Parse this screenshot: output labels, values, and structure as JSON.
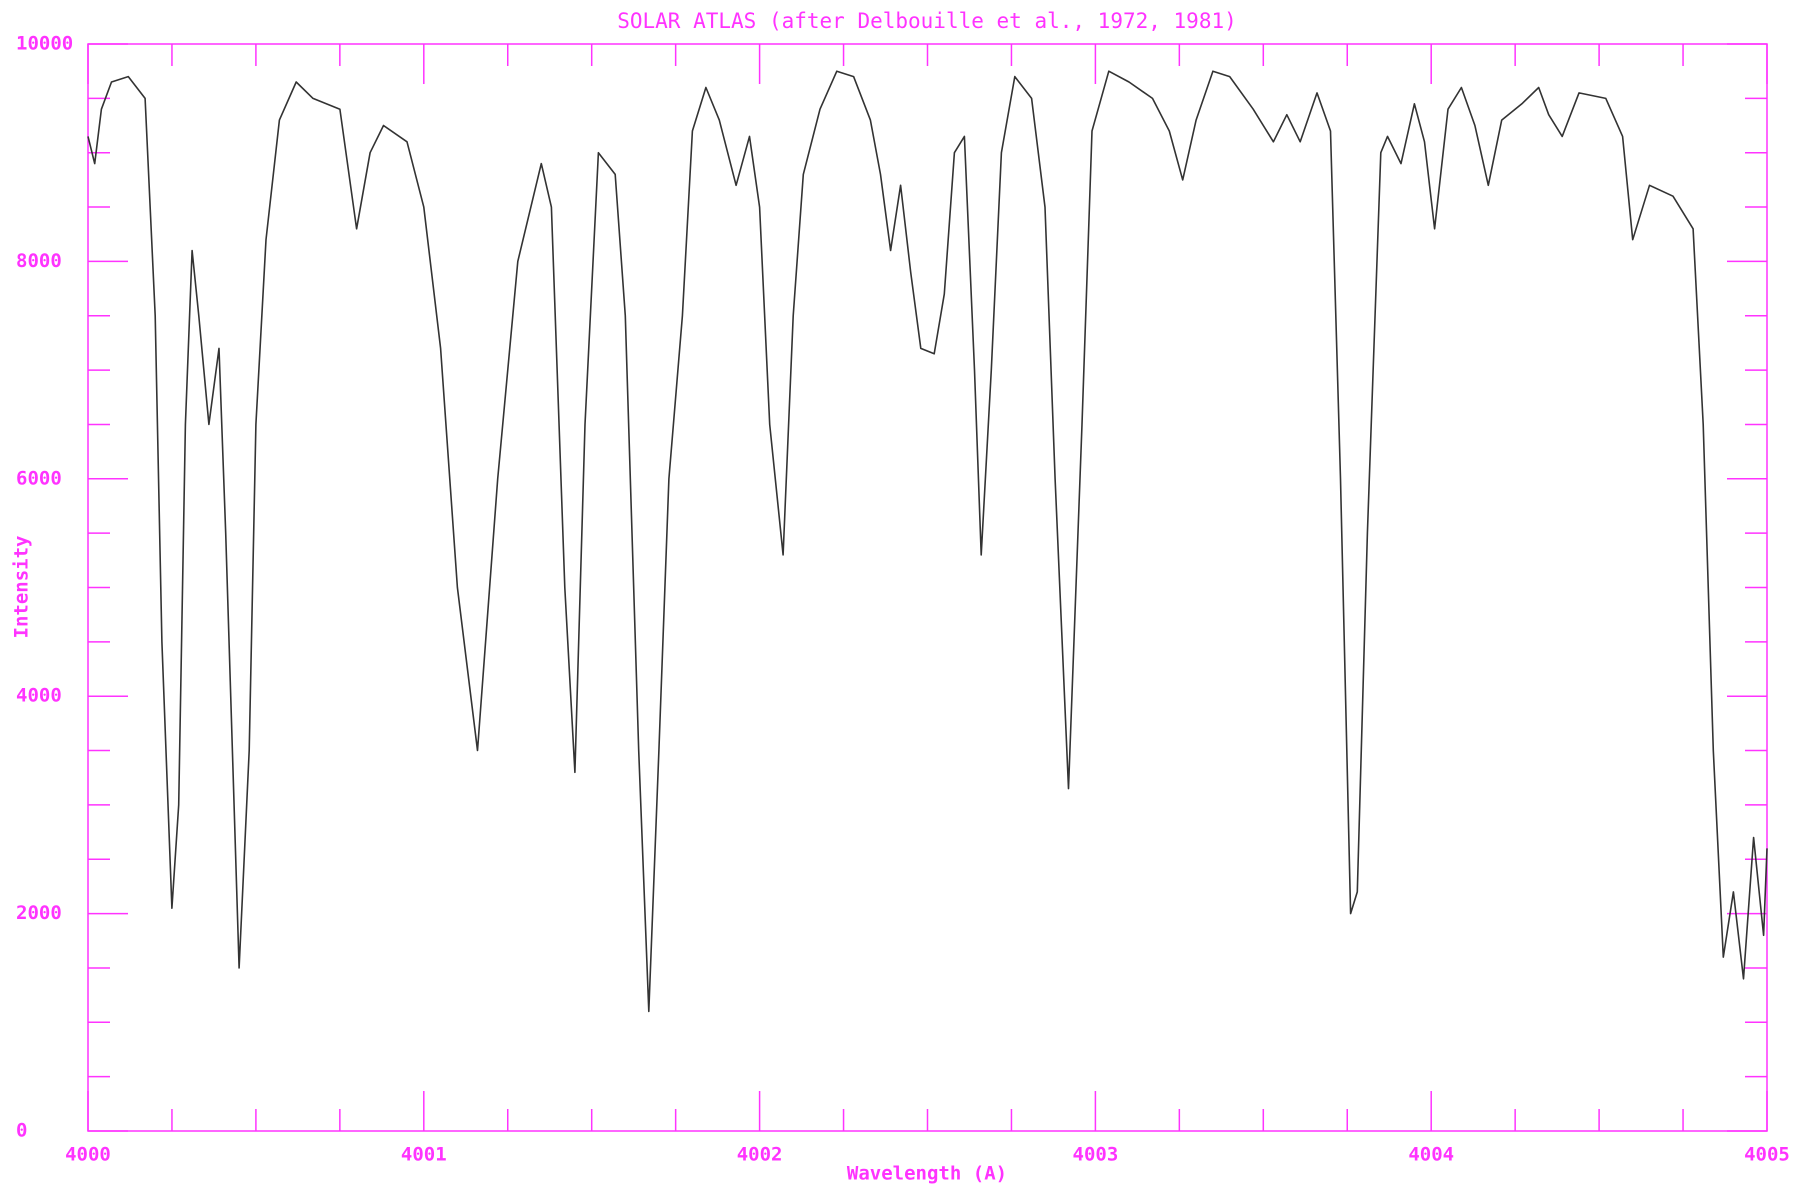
{
  "chart_data": {
    "type": "line",
    "title": "SOLAR ATLAS (after Delbouille et al., 1972, 1981)",
    "x_label": "Wavelength (A)",
    "y_label": "Intensity",
    "color": "#333333",
    "axis_color": "#ff33ff",
    "xlim": [
      4000,
      4005
    ],
    "xticks": [
      4000,
      4001,
      4002,
      4003,
      4004,
      4005
    ],
    "ylim": [
      0,
      10000
    ],
    "yticks": [
      0,
      2000,
      4000,
      6000,
      8000,
      10000
    ],
    "x": [
      4000.0,
      4000.02,
      4000.04,
      4000.07,
      4000.12,
      4000.17,
      4000.2,
      4000.22,
      4000.25,
      4000.27,
      4000.29,
      4000.31,
      4000.33,
      4000.36,
      4000.39,
      4000.41,
      4000.45,
      4000.48,
      4000.5,
      4000.53,
      4000.57,
      4000.62,
      4000.67,
      4000.75,
      4000.8,
      4000.84,
      4000.88,
      4000.95,
      4001.0,
      4001.05,
      4001.1,
      4001.16,
      4001.22,
      4001.28,
      4001.35,
      4001.38,
      4001.42,
      4001.45,
      4001.48,
      4001.52,
      4001.57,
      4001.6,
      4001.64,
      4001.67,
      4001.7,
      4001.73,
      4001.77,
      4001.8,
      4001.84,
      4001.88,
      4001.93,
      4001.97,
      4002.0,
      4002.03,
      4002.07,
      4002.1,
      4002.13,
      4002.18,
      4002.23,
      4002.28,
      4002.33,
      4002.36,
      4002.39,
      4002.42,
      4002.45,
      4002.48,
      4002.52,
      4002.55,
      4002.58,
      4002.61,
      4002.64,
      4002.66,
      4002.69,
      4002.72,
      4002.76,
      4002.81,
      4002.85,
      4002.88,
      4002.92,
      4002.96,
      4002.99,
      4003.04,
      4003.1,
      4003.17,
      4003.22,
      4003.26,
      4003.3,
      4003.35,
      4003.4,
      4003.47,
      4003.53,
      4003.57,
      4003.61,
      4003.66,
      4003.7,
      4003.73,
      4003.76,
      4003.78,
      4003.81,
      4003.85,
      4003.87,
      4003.91,
      4003.95,
      4003.98,
      4004.01,
      4004.05,
      4004.09,
      4004.13,
      4004.17,
      4004.21,
      4004.27,
      4004.32,
      4004.35,
      4004.39,
      4004.44,
      4004.52,
      4004.57,
      4004.6,
      4004.65,
      4004.72,
      4004.78,
      4004.81,
      4004.84,
      4004.87,
      4004.9,
      4004.93,
      4004.96,
      4004.99,
      4005.0
    ],
    "values": [
      9150,
      8900,
      9400,
      9650,
      9700,
      9500,
      7500,
      4500,
      2050,
      3000,
      6500,
      8100,
      7500,
      6500,
      7200,
      5500,
      1500,
      3500,
      6500,
      8200,
      9300,
      9650,
      9500,
      9400,
      8300,
      9000,
      9250,
      9100,
      8500,
      7200,
      5000,
      3500,
      6000,
      8000,
      8900,
      8500,
      5000,
      3300,
      6500,
      9000,
      8800,
      7500,
      3500,
      1100,
      3500,
      6000,
      7500,
      9200,
      9600,
      9300,
      8700,
      9150,
      8500,
      6500,
      5300,
      7500,
      8800,
      9400,
      9750,
      9700,
      9300,
      8800,
      8100,
      8700,
      7900,
      7200,
      7150,
      7700,
      9000,
      9150,
      7000,
      5300,
      7000,
      9000,
      9700,
      9500,
      8500,
      6000,
      3150,
      6500,
      9200,
      9750,
      9650,
      9500,
      9200,
      8750,
      9300,
      9750,
      9700,
      9400,
      9100,
      9350,
      9100,
      9550,
      9200,
      6000,
      2000,
      2200,
      5500,
      9000,
      9150,
      8900,
      9450,
      9100,
      8300,
      9400,
      9600,
      9250,
      8700,
      9300,
      9450,
      9600,
      9350,
      9150,
      9550,
      9500,
      9150,
      8200,
      8700,
      8600,
      8300,
      6500,
      3500,
      1600,
      2200,
      1400,
      2700,
      1800,
      2600
    ]
  }
}
